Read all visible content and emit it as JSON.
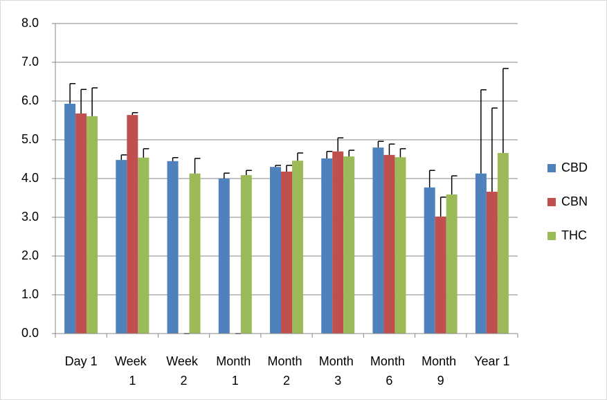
{
  "chart_data": {
    "type": "bar",
    "categories": [
      "Day 1",
      "Week 1",
      "Week 2",
      "Month 1",
      "Month 2",
      "Month 3",
      "Month 6",
      "Month 9",
      "Year 1"
    ],
    "series": [
      {
        "name": "CBD",
        "color": "#4f81bd",
        "values": [
          5.93,
          4.48,
          4.45,
          4.0,
          4.3,
          4.52,
          4.8,
          3.77,
          4.13
        ],
        "errors": [
          0.52,
          0.13,
          0.09,
          0.14,
          0.04,
          0.18,
          0.16,
          0.44,
          2.16
        ]
      },
      {
        "name": "CBN",
        "color": "#c0504d",
        "values": [
          5.68,
          5.64,
          0,
          0,
          4.18,
          4.7,
          4.61,
          3.02,
          3.66
        ],
        "errors": [
          0.62,
          0.06,
          0,
          0,
          0.16,
          0.35,
          0.28,
          0.5,
          2.16
        ]
      },
      {
        "name": "THC",
        "color": "#9bbb59",
        "values": [
          5.61,
          4.54,
          4.13,
          4.09,
          4.46,
          4.57,
          4.55,
          3.59,
          4.66
        ],
        "errors": [
          0.73,
          0.23,
          0.39,
          0.12,
          0.2,
          0.16,
          0.22,
          0.48,
          2.18
        ]
      }
    ],
    "ylim": [
      0,
      8
    ],
    "yticks": [
      {
        "value": 0,
        "label": "0.0"
      },
      {
        "value": 1,
        "label": "1.0"
      },
      {
        "value": 2,
        "label": "2.0"
      },
      {
        "value": 3,
        "label": "3.0"
      },
      {
        "value": 4,
        "label": "4.0"
      },
      {
        "value": 5,
        "label": "5.0"
      },
      {
        "value": 6,
        "label": "6.0"
      },
      {
        "value": 7,
        "label": "7.0"
      },
      {
        "value": 8,
        "label": "8.0"
      }
    ],
    "grid": true,
    "legend": "right"
  }
}
